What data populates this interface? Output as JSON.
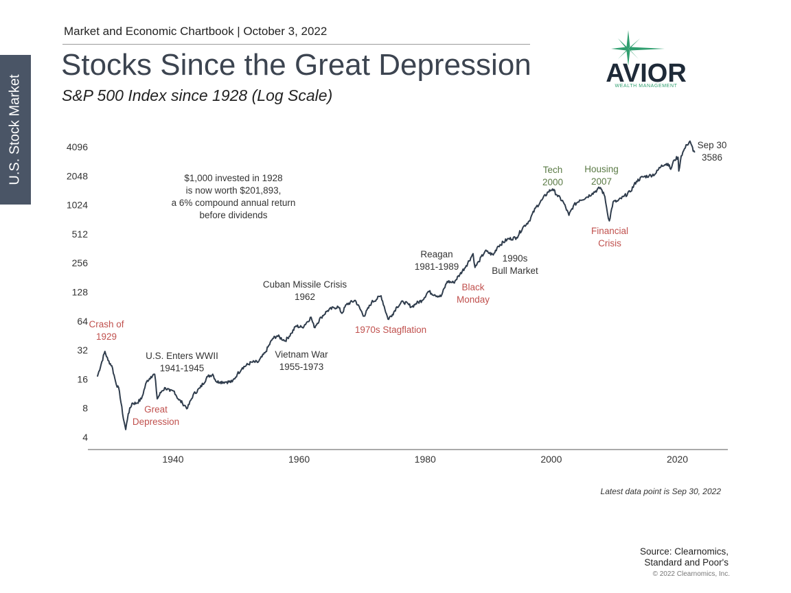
{
  "side_tab": "U.S. Stock Market",
  "header": "Market and Economic Chartbook | October 3, 2022",
  "title": "Stocks Since the Great Depression",
  "subtitle": "S&P 500 Index since 1928 (Log Scale)",
  "logo": {
    "name": "AVIOR",
    "tagline": "WEALTH MANAGEMENT",
    "accent": "#2e9e6e",
    "text_color": "#1e2a38"
  },
  "latest_note": "Latest data point is Sep 30, 2022",
  "source": {
    "line1": "Source: Clearnomics,",
    "line2": "Standard and Poor's"
  },
  "copyright": "© 2022 Clearnomics, Inc.",
  "chart_data": {
    "type": "line",
    "title": "S&P 500 Index since 1928 (Log Scale)",
    "y_scale": "log2",
    "ylim": [
      4,
      4096
    ],
    "xlim": [
      1926.5,
      2028
    ],
    "y_ticks": [
      4,
      8,
      16,
      32,
      64,
      128,
      256,
      512,
      1024,
      2048,
      4096
    ],
    "x_ticks": [
      1940,
      1960,
      1980,
      2000,
      2020
    ],
    "grid": false,
    "line_color": "#2f3c4c",
    "series": [
      {
        "x": [
          1928.0,
          1929.2,
          1929.7,
          1930.3,
          1930.9,
          1931.5,
          1932.0,
          1932.5,
          1932.9,
          1933.5,
          1934.2,
          1935.0,
          1935.8,
          1936.5,
          1937.1,
          1937.5,
          1938.2,
          1938.8,
          1939.5,
          1940.2,
          1940.8,
          1941.5,
          1942.3,
          1943.2,
          1944.3,
          1945.5,
          1946.3,
          1946.9,
          1947.5,
          1948.5,
          1949.4,
          1950.2,
          1951.0,
          1952.5,
          1953.5,
          1954.6,
          1955.8,
          1956.5,
          1957.8,
          1958.8,
          1959.5,
          1960.5,
          1961.9,
          1962.4,
          1963.5,
          1964.5,
          1965.5,
          1966.2,
          1966.8,
          1967.5,
          1968.9,
          1970.3,
          1971.5,
          1973.0,
          1974.1,
          1974.8,
          1975.5,
          1976.5,
          1977.9,
          1978.5,
          1979.5,
          1980.5,
          1981.5,
          1982.5,
          1983.5,
          1984.5,
          1985.5,
          1986.5,
          1987.6,
          1987.9,
          1988.5,
          1989.5,
          1990.8,
          1991.5,
          1993.0,
          1994.5,
          1995.5,
          1996.5,
          1997.5,
          1998.5,
          1999.5,
          2000.2,
          2000.9,
          2001.9,
          2002.8,
          2003.5,
          2004.5,
          2005.5,
          2006.5,
          2007.8,
          2008.5,
          2008.9,
          2009.2,
          2009.8,
          2010.5,
          2011.5,
          2012.5,
          2013.5,
          2014.5,
          2015.5,
          2016.5,
          2017.5,
          2018.5,
          2018.95,
          2019.5,
          2020.1,
          2020.22,
          2020.6,
          2021.0,
          2021.5,
          2022.0,
          2022.3,
          2022.5,
          2022.75
        ],
        "values": [
          17,
          31,
          25,
          22,
          15,
          12,
          7,
          4.8,
          7,
          9,
          9,
          10,
          15,
          17,
          18,
          10,
          12,
          13,
          12,
          12,
          10,
          9,
          8,
          11,
          13,
          17,
          18,
          15,
          15,
          15,
          15,
          18,
          21,
          24,
          24,
          30,
          42,
          45,
          40,
          48,
          57,
          55,
          70,
          55,
          70,
          82,
          88,
          90,
          77,
          95,
          105,
          72,
          100,
          117,
          67,
          75,
          90,
          102,
          90,
          97,
          105,
          130,
          120,
          115,
          165,
          160,
          195,
          240,
          320,
          230,
          265,
          340,
          310,
          380,
          450,
          470,
          600,
          700,
          950,
          1150,
          1400,
          1500,
          1300,
          1100,
          800,
          1000,
          1150,
          1220,
          1350,
          1550,
          1250,
          850,
          700,
          1100,
          1120,
          1250,
          1400,
          1800,
          2000,
          2050,
          2150,
          2650,
          2750,
          2400,
          3000,
          3200,
          2300,
          3300,
          3750,
          4300,
          4700,
          4200,
          3700,
          3586
        ]
      }
    ],
    "annotations": [
      {
        "lines": [
          "Crash of",
          "1929"
        ],
        "color": "#c0504d"
      },
      {
        "lines": [
          "Great",
          "Depression"
        ],
        "color": "#c0504d"
      },
      {
        "lines": [
          "U.S. Enters WWII",
          "1941-1945"
        ],
        "color": "#333333"
      },
      {
        "lines": [
          "Vietnam War",
          "1955-1973"
        ],
        "color": "#333333"
      },
      {
        "lines": [
          "Cuban Missile Crisis",
          "1962"
        ],
        "color": "#333333"
      },
      {
        "lines": [
          "1970s Stagflation"
        ],
        "color": "#c0504d"
      },
      {
        "lines": [
          "Reagan",
          "1981-1989"
        ],
        "color": "#333333"
      },
      {
        "lines": [
          "Black",
          "Monday"
        ],
        "color": "#c0504d"
      },
      {
        "lines": [
          "1990s",
          "Bull Market"
        ],
        "color": "#333333"
      },
      {
        "lines": [
          "Tech",
          "2000"
        ],
        "color": "#5a7a45"
      },
      {
        "lines": [
          "Housing",
          "2007"
        ],
        "color": "#5a7a45"
      },
      {
        "lines": [
          "Financial",
          "Crisis"
        ],
        "color": "#c0504d"
      },
      {
        "lines": [
          "Sep 30",
          "3586"
        ],
        "color": "#333333"
      },
      {
        "lines": [
          "$1,000 invested in 1928",
          "is now worth $201,893,",
          "a 6% compound annual return",
          "before dividends"
        ],
        "color": "#333333"
      }
    ]
  }
}
